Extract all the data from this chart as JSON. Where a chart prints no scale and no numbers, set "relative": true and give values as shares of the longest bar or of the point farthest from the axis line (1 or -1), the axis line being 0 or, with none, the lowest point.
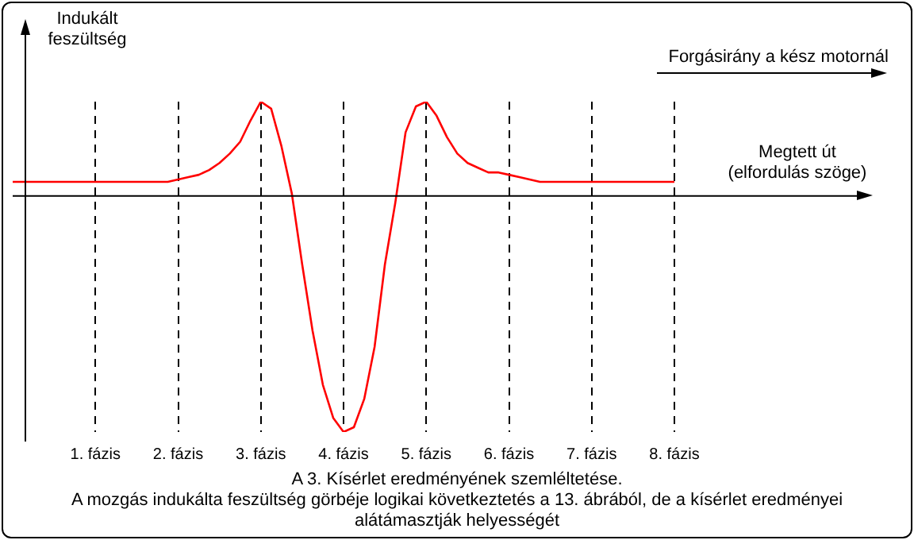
{
  "chart_data": {
    "type": "line",
    "relative": true,
    "ylabel": "Indukált feszültség",
    "xlabel": "Megtett út (elfordulás szöge)",
    "annotations": [
      "Forgásirány a kész motornál",
      "A 3. Kísérlet eredményének szemléltetése.",
      "A mozgás indukálta feszültség görbéje logikai következtetés a 13. ábrából, de a kísérlet eredményei alátámasztják helyességét"
    ],
    "categories": [
      null,
      null,
      null,
      null,
      null,
      null,
      null,
      null,
      "1. fázis",
      null,
      null,
      null,
      null,
      null,
      null,
      null,
      "2. fázis",
      null,
      null,
      null,
      null,
      null,
      null,
      null,
      "3. fázis",
      null,
      null,
      null,
      null,
      null,
      null,
      null,
      "4. fázis",
      null,
      null,
      null,
      null,
      null,
      null,
      null,
      "5. fázis",
      null,
      null,
      null,
      null,
      null,
      null,
      null,
      "6. fázis",
      null,
      null,
      null,
      null,
      null,
      null,
      null,
      "7. fázis",
      null,
      null,
      null,
      null,
      null,
      null,
      null,
      "8. fázis"
    ],
    "series": [
      {
        "color": "#ff0000",
        "values": [
          0.06,
          0.06,
          0.06,
          0.06,
          0.06,
          0.06,
          0.06,
          0.06,
          0.06,
          0.06,
          0.06,
          0.06,
          0.06,
          0.06,
          0.06,
          0.06,
          0.07,
          0.08,
          0.09,
          0.11,
          0.14,
          0.18,
          0.23,
          0.32,
          0.4,
          0.37,
          0.21,
          0.01,
          -0.29,
          -0.57,
          -0.8,
          -0.94,
          -1,
          -0.98,
          -0.86,
          -0.64,
          -0.29,
          -0.03,
          0.27,
          0.38,
          0.4,
          0.34,
          0.25,
          0.18,
          0.14,
          0.12,
          0.1,
          0.1,
          0.09,
          0.08,
          0.07,
          0.06,
          0.06,
          0.06,
          0.06,
          0.06,
          0.06,
          0.06,
          0.06,
          0.06,
          0.06,
          0.06,
          0.06,
          0.06,
          0.06
        ]
      }
    ],
    "grid": "x",
    "marker": "none",
    "line_style": "solid"
  }
}
